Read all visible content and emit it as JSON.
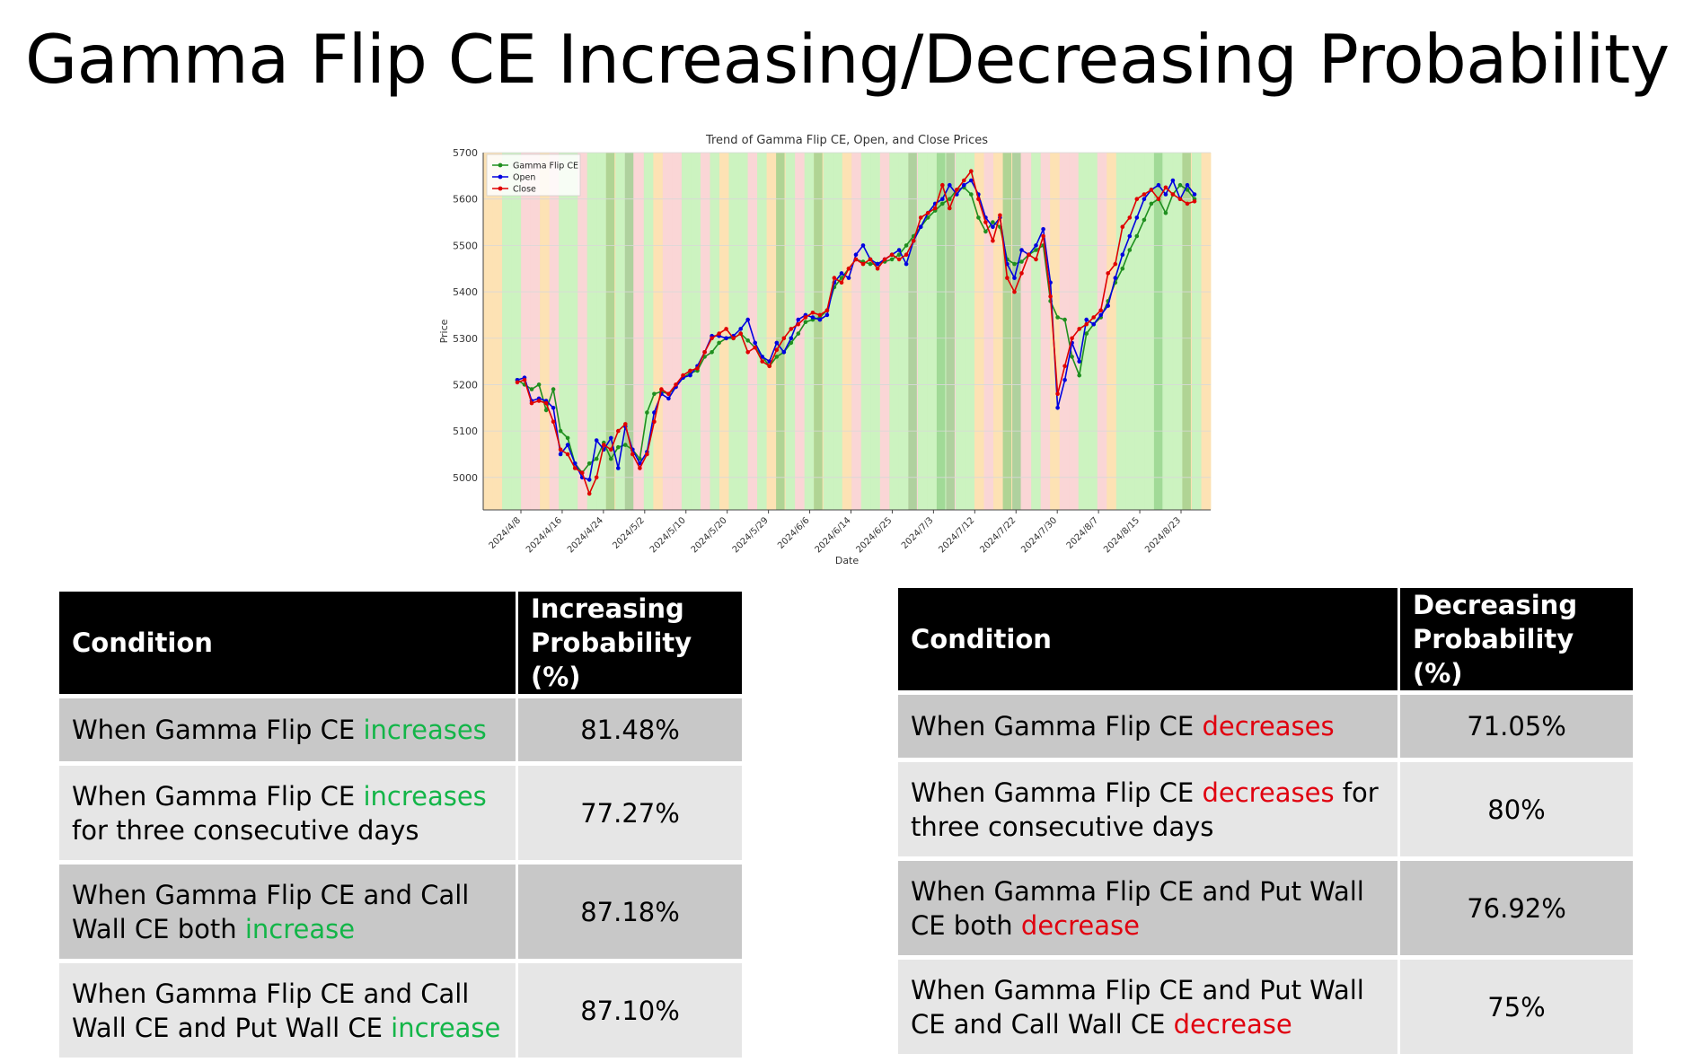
{
  "title": "Gamma Flip CE Increasing/Decreasing Probability",
  "chart_data": {
    "type": "line",
    "title": "Trend of Gamma Flip CE, Open, and Close Prices",
    "xlabel": "Date",
    "ylabel": "Price",
    "ylim": [
      4930,
      5700
    ],
    "yticks": [
      5000,
      5100,
      5200,
      5300,
      5400,
      5500,
      5600,
      5700
    ],
    "x_tick_labels": [
      "2024/4/8",
      "2024/4/16",
      "2024/4/24",
      "2024/5/2",
      "2024/5/10",
      "2024/5/20",
      "2024/5/29",
      "2024/6/6",
      "2024/6/14",
      "2024/6/25",
      "2024/7/3",
      "2024/7/12",
      "2024/7/22",
      "2024/7/30",
      "2024/8/7",
      "2024/8/15",
      "2024/8/23"
    ],
    "legend_position": "top-left",
    "grid": true,
    "background_bands": [
      "orange",
      "orange",
      "green",
      "green",
      "red",
      "red",
      "orange",
      "red",
      "green",
      "green",
      "red",
      "green",
      "green",
      "orange",
      "green",
      "red",
      "red",
      "green",
      "orange",
      "red",
      "red",
      "green",
      "green",
      "red",
      "green",
      "orange",
      "green",
      "green",
      "red",
      "green",
      "orange",
      "orange",
      "green",
      "red",
      "green",
      "orange",
      "green",
      "green",
      "orange",
      "red",
      "green",
      "green",
      "red",
      "green",
      "green",
      "red",
      "green",
      "green",
      "green",
      "red",
      "green",
      "green",
      "orange",
      "red",
      "orange",
      "orange",
      "red",
      "red",
      "green",
      "red",
      "orange",
      "red",
      "red",
      "green",
      "green",
      "red",
      "orange",
      "green",
      "green",
      "green",
      "green",
      "green",
      "green",
      "green",
      "orange",
      "green",
      "orange"
    ],
    "band_colors": {
      "green": "#c9f2bd",
      "orange": "#fde0b0",
      "red": "#fad4d4"
    },
    "series": [
      {
        "name": "Gamma Flip CE",
        "color": "#1f8f1f",
        "values": [
          5210,
          5200,
          5190,
          5200,
          5145,
          5190,
          5100,
          5085,
          5030,
          5010,
          5030,
          5040,
          5075,
          5040,
          5065,
          5070,
          5060,
          5040,
          5140,
          5180,
          5185,
          5180,
          5195,
          5215,
          5225,
          5230,
          5260,
          5270,
          5290,
          5300,
          5300,
          5310,
          5295,
          5280,
          5260,
          5240,
          5260,
          5270,
          5290,
          5310,
          5335,
          5340,
          5345,
          5360,
          5410,
          5430,
          5450,
          5470,
          5465,
          5460,
          5460,
          5465,
          5470,
          5480,
          5500,
          5520,
          5540,
          5560,
          5575,
          5590,
          5600,
          5620,
          5625,
          5610,
          5560,
          5530,
          5550,
          5540,
          5470,
          5460,
          5465,
          5480,
          5490,
          5500,
          5380,
          5345,
          5340,
          5260,
          5220,
          5310,
          5330,
          5345,
          5380,
          5420,
          5450,
          5490,
          5520,
          5555,
          5590,
          5600,
          5570,
          5610,
          5630,
          5620,
          5600
        ]
      },
      {
        "name": "Open",
        "color": "#0000e0",
        "values": [
          5210,
          5215,
          5165,
          5170,
          5165,
          5150,
          5050,
          5070,
          5030,
          5000,
          4995,
          5080,
          5060,
          5085,
          5020,
          5110,
          5060,
          5030,
          5055,
          5140,
          5180,
          5170,
          5195,
          5215,
          5220,
          5240,
          5270,
          5305,
          5305,
          5300,
          5305,
          5320,
          5340,
          5290,
          5260,
          5250,
          5290,
          5270,
          5300,
          5340,
          5350,
          5345,
          5340,
          5350,
          5420,
          5440,
          5430,
          5480,
          5500,
          5470,
          5460,
          5470,
          5480,
          5490,
          5460,
          5510,
          5540,
          5570,
          5590,
          5600,
          5630,
          5610,
          5630,
          5640,
          5610,
          5560,
          5540,
          5560,
          5460,
          5430,
          5490,
          5480,
          5500,
          5535,
          5420,
          5150,
          5210,
          5290,
          5250,
          5340,
          5330,
          5350,
          5370,
          5430,
          5480,
          5520,
          5560,
          5600,
          5620,
          5630,
          5610,
          5640,
          5600,
          5630,
          5610
        ]
      },
      {
        "name": "Close",
        "color": "#e00000",
        "values": [
          5205,
          5210,
          5160,
          5165,
          5160,
          5120,
          5060,
          5050,
          5020,
          5010,
          4965,
          5000,
          5070,
          5060,
          5100,
          5115,
          5050,
          5020,
          5050,
          5120,
          5190,
          5180,
          5200,
          5220,
          5230,
          5235,
          5270,
          5300,
          5310,
          5320,
          5300,
          5310,
          5270,
          5280,
          5250,
          5240,
          5275,
          5300,
          5320,
          5330,
          5345,
          5355,
          5350,
          5360,
          5430,
          5420,
          5450,
          5470,
          5460,
          5470,
          5450,
          5470,
          5480,
          5470,
          5480,
          5510,
          5560,
          5570,
          5580,
          5630,
          5580,
          5620,
          5640,
          5660,
          5600,
          5550,
          5510,
          5565,
          5430,
          5400,
          5440,
          5480,
          5470,
          5520,
          5390,
          5180,
          5240,
          5300,
          5320,
          5330,
          5345,
          5360,
          5440,
          5460,
          5540,
          5560,
          5600,
          5610,
          5620,
          5600,
          5625,
          5610,
          5600,
          5590,
          5595
        ]
      }
    ]
  },
  "table_left": {
    "col_condition": "Condition",
    "col_probability_line1": "Increasing",
    "col_probability_line2": "Probability (%)",
    "rows": [
      {
        "pre": "When Gamma Flip CE ",
        "highlight": "increases",
        "post": "",
        "value": "81.48%"
      },
      {
        "pre": "When Gamma Flip CE ",
        "highlight": "increases",
        "post": " for three consecutive days",
        "value": "77.27%"
      },
      {
        "pre": "When Gamma Flip CE and Call Wall CE both ",
        "highlight": "increase",
        "post": "",
        "value": "87.18%"
      },
      {
        "pre": "When Gamma Flip CE and Call Wall CE and Put Wall CE ",
        "highlight": "increase",
        "post": "",
        "value": "87.10%"
      }
    ]
  },
  "table_right": {
    "col_condition": "Condition",
    "col_probability_line1": "Decreasing",
    "col_probability_line2": "Probability (%)",
    "rows": [
      {
        "pre": "When Gamma Flip CE ",
        "highlight": "decreases",
        "post": "",
        "value": "71.05%"
      },
      {
        "pre": "When Gamma Flip CE ",
        "highlight": "decreases",
        "post": " for three consecutive days",
        "value": "80%"
      },
      {
        "pre": "When Gamma Flip CE and Put Wall CE both ",
        "highlight": "decrease",
        "post": "",
        "value": "76.92%"
      },
      {
        "pre": "When Gamma Flip CE and Put Wall CE and Call Wall CE ",
        "highlight": "decrease",
        "post": "",
        "value": "75%"
      }
    ]
  }
}
